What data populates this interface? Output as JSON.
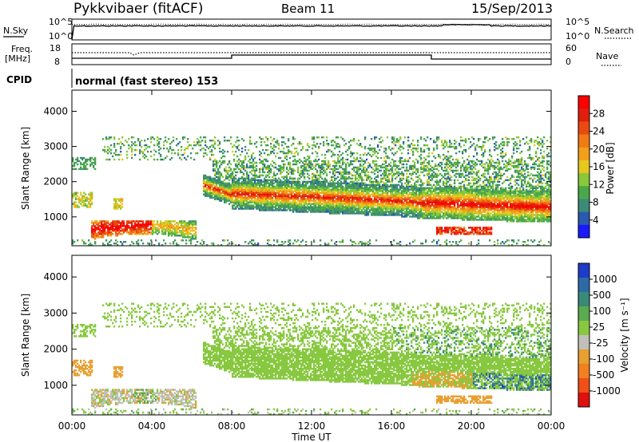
{
  "header": {
    "site": "Pykkvibaer (fitACF)",
    "beam": "Beam 11",
    "date": "15/Sep/2013"
  },
  "side_labels": {
    "nsky": "N.Sky",
    "nsearch": "N.Search",
    "freq_line1": "Freq.",
    "freq_line2": "[MHz]",
    "nave": "Nave",
    "cpid": "CPID"
  },
  "cpid_text": "normal (fast stereo) 153",
  "noise_panel": {
    "left_ticks": [
      "10^5",
      "10^0"
    ],
    "right_ticks": [
      "10^5",
      "10^0"
    ]
  },
  "freq_panel": {
    "left_ticks": [
      "18",
      "8"
    ],
    "right_ticks": [
      "60",
      "0"
    ]
  },
  "chart_data": [
    {
      "type": "heatmap",
      "name": "power",
      "ylabel": "Slant Range [km]",
      "yticks": [
        "1000",
        "2000",
        "3000",
        "4000"
      ],
      "xticks": [
        "00:00",
        "04:00",
        "08:00",
        "12:00",
        "16:00",
        "20:00",
        "00:00"
      ],
      "colorbar_label": "Power [dB]",
      "colorbar_ticks": [
        "4",
        "8",
        "12",
        "16",
        "20",
        "24",
        "28"
      ],
      "colors": [
        "#1a1aff",
        "#2a5ab0",
        "#3e8a78",
        "#4aa84a",
        "#88c83a",
        "#e6c81e",
        "#f2a01a",
        "#f07a14",
        "#e84a10",
        "#e01e0e",
        "#ff0000"
      ],
      "scale": [
        0,
        30
      ]
    },
    {
      "type": "heatmap",
      "name": "velocity",
      "ylabel": "Slant Range [km]",
      "yticks": [
        "1000",
        "2000",
        "3000",
        "4000"
      ],
      "xticks": [
        "00:00",
        "04:00",
        "08:00",
        "12:00",
        "16:00",
        "20:00",
        "00:00"
      ],
      "xlabel": "Time UT",
      "colorbar_label": "Velocity [m s⁻¹]",
      "colorbar_ticks": [
        "1000",
        "500",
        "100",
        "25",
        "-25",
        "-100",
        "-500",
        "-1000"
      ],
      "colors": [
        "#1e3cc8",
        "#2e6aa8",
        "#3a8a7a",
        "#5aaa50",
        "#88c840",
        "#c0c0b8",
        "#e8a030",
        "#f08020",
        "#f05018",
        "#e01010"
      ],
      "scale": [
        -1000,
        1000
      ]
    }
  ]
}
